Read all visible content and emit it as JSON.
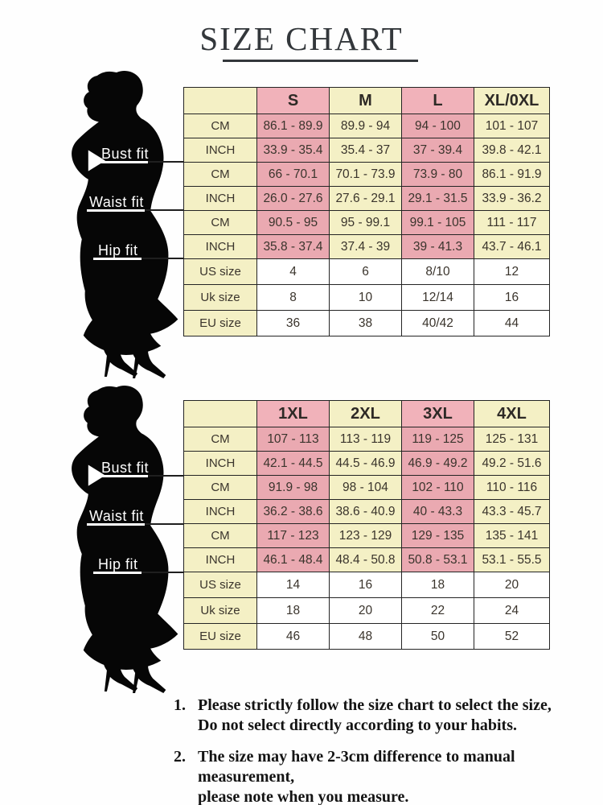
{
  "title": "SIZE CHART",
  "fit_labels": [
    "Bust fit",
    "Waist fit",
    "Hip fit"
  ],
  "tables": [
    {
      "sizes": [
        "S",
        "M",
        "L",
        "XL/0XL"
      ],
      "rows": [
        {
          "label": "CM",
          "type": "measure",
          "values": [
            "86.1 - 89.9",
            "89.9 - 94",
            "94 - 100",
            "101 - 107"
          ]
        },
        {
          "label": "INCH",
          "type": "measure",
          "values": [
            "33.9 - 35.4",
            "35.4 - 37",
            "37 - 39.4",
            "39.8 - 42.1"
          ]
        },
        {
          "label": "CM",
          "type": "measure",
          "values": [
            "66 - 70.1",
            "70.1 - 73.9",
            "73.9 - 80",
            "86.1 - 91.9"
          ]
        },
        {
          "label": "INCH",
          "type": "measure",
          "values": [
            "26.0 - 27.6",
            "27.6 - 29.1",
            "29.1 - 31.5",
            "33.9 - 36.2"
          ]
        },
        {
          "label": "CM",
          "type": "measure",
          "values": [
            "90.5 - 95",
            "95 - 99.1",
            "99.1 - 105",
            "111 - 117"
          ]
        },
        {
          "label": "INCH",
          "type": "measure",
          "values": [
            "35.8 - 37.4",
            "37.4 - 39",
            "39 - 41.3",
            "43.7 - 46.1"
          ]
        },
        {
          "label": "US size",
          "type": "size",
          "values": [
            "4",
            "6",
            "8/10",
            "12"
          ]
        },
        {
          "label": "Uk size",
          "type": "size",
          "values": [
            "8",
            "10",
            "12/14",
            "16"
          ]
        },
        {
          "label": "EU size",
          "type": "size",
          "values": [
            "36",
            "38",
            "40/42",
            "44"
          ]
        }
      ]
    },
    {
      "sizes": [
        "1XL",
        "2XL",
        "3XL",
        "4XL"
      ],
      "rows": [
        {
          "label": "CM",
          "type": "measure",
          "values": [
            "107 - 113",
            "113 - 119",
            "119 - 125",
            "125 - 131"
          ]
        },
        {
          "label": "INCH",
          "type": "measure",
          "values": [
            "42.1 - 44.5",
            "44.5 - 46.9",
            "46.9 - 49.2",
            "49.2 - 51.6"
          ]
        },
        {
          "label": "CM",
          "type": "measure",
          "values": [
            "91.9 - 98",
            "98 - 104",
            "102 - 110",
            "110 - 116"
          ]
        },
        {
          "label": "INCH",
          "type": "measure",
          "values": [
            "36.2 - 38.6",
            "38.6 - 40.9",
            "40 - 43.3",
            "43.3 - 45.7"
          ]
        },
        {
          "label": "CM",
          "type": "measure",
          "values": [
            "117 - 123",
            "123 - 129",
            "129 - 135",
            "135 - 141"
          ]
        },
        {
          "label": "INCH",
          "type": "measure",
          "values": [
            "46.1 - 48.4",
            "48.4 - 50.8",
            "50.8 - 53.1",
            "53.1 - 55.5"
          ]
        },
        {
          "label": "US size",
          "type": "size",
          "values": [
            "14",
            "16",
            "18",
            "20"
          ]
        },
        {
          "label": "Uk size",
          "type": "size",
          "values": [
            "18",
            "20",
            "22",
            "24"
          ]
        },
        {
          "label": "EU size",
          "type": "size",
          "values": [
            "46",
            "48",
            "50",
            "52"
          ]
        }
      ]
    }
  ],
  "notes": [
    {
      "num": "1.",
      "lines": [
        "Please strictly follow the size chart to select the size,",
        "Do not select directly according to your habits."
      ]
    },
    {
      "num": "2.",
      "lines": [
        "The size may have 2-3cm difference  to manual measurement,",
        "please note when you measure."
      ]
    }
  ],
  "colors": {
    "yellow": "#f4f0c5",
    "pink": "#eaa9b1",
    "pink_header": "#f1b2ba",
    "border": "#242424",
    "silhouette": "#060606"
  }
}
